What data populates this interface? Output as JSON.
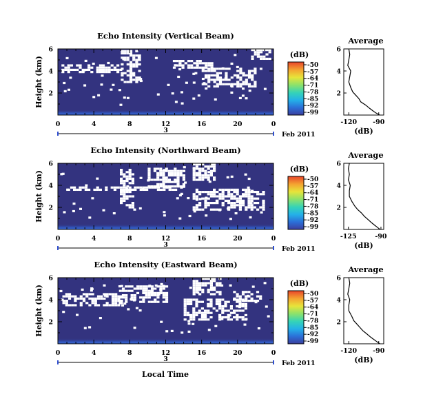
{
  "figure": {
    "xlabel": "Local Time",
    "date_label": "Feb 2011",
    "colorbar_unit": "(dB)",
    "colorbar_ticks": [
      "-50",
      "-57",
      "-64",
      "-71",
      "-78",
      "-85",
      "-92",
      "-99"
    ],
    "colorscale": [
      "#3b3f9e",
      "#2b6fd8",
      "#24b0e8",
      "#34d3b8",
      "#8ee26a",
      "#e7e43a",
      "#f4a531",
      "#e8452a"
    ],
    "background_color": "#33337f",
    "echo_color": "#ffffff"
  },
  "chart_data": [
    {
      "type": "heatmap",
      "title": "Echo Intensity (Vertical Beam)",
      "ylabel": "Height (km)",
      "x_ticks": [
        "0",
        "4",
        "8",
        "12",
        "16",
        "20",
        "0"
      ],
      "y_ticks": [
        "6",
        "4",
        "2"
      ],
      "day_number": "3",
      "xlim": [
        0,
        24
      ],
      "ylim": [
        0,
        6
      ],
      "zlim": [
        -99,
        -50
      ],
      "echo_regions": [
        {
          "x0": 0.4,
          "x1": 7.0,
          "y0": 3.9,
          "y1": 4.6
        },
        {
          "x0": 7.0,
          "x1": 9.0,
          "y0": 2.9,
          "y1": 5.9
        },
        {
          "x0": 12.8,
          "x1": 17.0,
          "y0": 4.2,
          "y1": 5.0
        },
        {
          "x0": 16.0,
          "x1": 22.0,
          "y0": 2.5,
          "y1": 4.3
        },
        {
          "x0": 21.5,
          "x1": 23.5,
          "y0": 5.0,
          "y1": 6.0
        }
      ]
    },
    {
      "type": "line",
      "title": "Average",
      "xlabel": "(dB)",
      "x_ticks": [
        "-120",
        "-90"
      ],
      "y_ticks": [
        "6",
        "4",
        "2"
      ],
      "xlim": [
        -125,
        -85
      ],
      "ylim": [
        0,
        6
      ],
      "x": [
        -120,
        -119,
        -120,
        -121,
        -118,
        -119,
        -120,
        -118,
        -116,
        -113,
        -110,
        -108,
        -103,
        -99,
        -96,
        -93,
        -89
      ],
      "y": [
        6.0,
        5.5,
        5.0,
        4.5,
        4.0,
        3.5,
        3.0,
        2.5,
        2.1,
        1.8,
        1.5,
        1.2,
        0.9,
        0.6,
        0.4,
        0.2,
        0.0
      ]
    },
    {
      "type": "heatmap",
      "title": "Echo Intensity (Northward Beam)",
      "ylabel": "Height (km)",
      "x_ticks": [
        "0",
        "4",
        "8",
        "12",
        "16",
        "20",
        "0"
      ],
      "y_ticks": [
        "6",
        "4",
        "2"
      ],
      "day_number": "3",
      "xlim": [
        0,
        24
      ],
      "ylim": [
        0,
        6
      ],
      "zlim": [
        -99,
        -50
      ],
      "echo_regions": [
        {
          "x0": 0.4,
          "x1": 14.0,
          "y0": 3.6,
          "y1": 3.9
        },
        {
          "x0": 6.9,
          "x1": 8.4,
          "y0": 2.0,
          "y1": 5.5
        },
        {
          "x0": 10.0,
          "x1": 14.0,
          "y0": 3.9,
          "y1": 5.6
        },
        {
          "x0": 15.0,
          "x1": 23.0,
          "y0": 1.8,
          "y1": 3.7
        },
        {
          "x0": 15.0,
          "x1": 17.5,
          "y0": 4.5,
          "y1": 6.0
        }
      ]
    },
    {
      "type": "line",
      "title": "Average",
      "xlabel": "(dB)",
      "x_ticks": [
        "-125",
        "-90"
      ],
      "y_ticks": [
        "6",
        "4",
        "2"
      ],
      "xlim": [
        -130,
        -87
      ],
      "ylim": [
        0,
        6
      ],
      "x": [
        -124,
        -125,
        -124,
        -125,
        -123,
        -124,
        -124,
        -121,
        -118,
        -115,
        -111,
        -108,
        -104,
        -100,
        -97,
        -94,
        -91
      ],
      "y": [
        6.0,
        5.5,
        5.0,
        4.5,
        4.0,
        3.5,
        3.0,
        2.5,
        2.1,
        1.8,
        1.5,
        1.2,
        0.9,
        0.6,
        0.4,
        0.2,
        0.0
      ]
    },
    {
      "type": "heatmap",
      "title": "Echo Intensity (Eastward Beam)",
      "ylabel": "Height (km)",
      "x_ticks": [
        "0",
        "4",
        "8",
        "12",
        "16",
        "20",
        "0"
      ],
      "y_ticks": [
        "6",
        "4",
        "2"
      ],
      "day_number": "3",
      "xlim": [
        0,
        24
      ],
      "ylim": [
        0,
        6
      ],
      "zlim": [
        -99,
        -50
      ],
      "echo_regions": [
        {
          "x0": 0.5,
          "x1": 7.0,
          "y0": 3.5,
          "y1": 4.6
        },
        {
          "x0": 6.8,
          "x1": 12.0,
          "y0": 3.8,
          "y1": 5.3
        },
        {
          "x0": 14.0,
          "x1": 21.0,
          "y0": 2.2,
          "y1": 4.1
        },
        {
          "x0": 15.0,
          "x1": 18.0,
          "y0": 4.5,
          "y1": 6.0
        },
        {
          "x0": 19.5,
          "x1": 22.5,
          "y0": 3.9,
          "y1": 4.8
        }
      ]
    },
    {
      "type": "line",
      "title": "Average",
      "xlabel": "(dB)",
      "x_ticks": [
        "-120",
        "-90"
      ],
      "y_ticks": [
        "6",
        "4",
        "2"
      ],
      "xlim": [
        -125,
        -85
      ],
      "ylim": [
        0,
        6
      ],
      "x": [
        -120,
        -119,
        -120,
        -121,
        -119,
        -120,
        -120,
        -117,
        -115,
        -112,
        -109,
        -106,
        -102,
        -98,
        -95,
        -92,
        -89
      ],
      "y": [
        6.0,
        5.5,
        5.0,
        4.5,
        4.0,
        3.5,
        3.0,
        2.5,
        2.1,
        1.8,
        1.5,
        1.2,
        0.9,
        0.6,
        0.4,
        0.2,
        0.0
      ]
    }
  ]
}
